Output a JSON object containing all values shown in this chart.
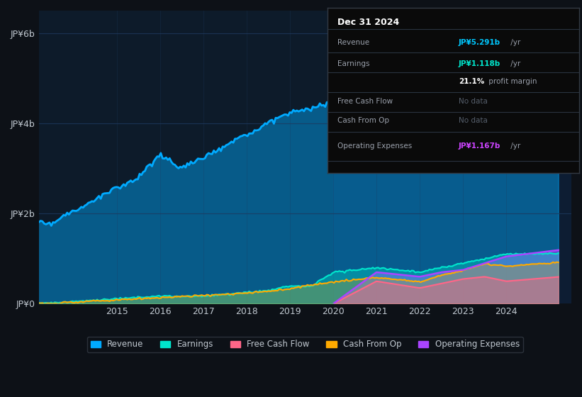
{
  "bg_color": "#0d1117",
  "plot_bg_color": "#0d1b2a",
  "grid_color": "#1e3a5f",
  "text_color": "#c0c8d0",
  "y_label_top": "JP¥6b",
  "y_label_bottom": "JP¥0",
  "x_ticks": [
    2015,
    2016,
    2017,
    2018,
    2019,
    2020,
    2021,
    2022,
    2023,
    2024
  ],
  "tooltip_title": "Dec 31 2024",
  "legend_items": [
    {
      "label": "Revenue",
      "color": "#00aaff"
    },
    {
      "label": "Earnings",
      "color": "#00e5cc"
    },
    {
      "label": "Free Cash Flow",
      "color": "#ff6688"
    },
    {
      "label": "Cash From Op",
      "color": "#ffaa00"
    },
    {
      "label": "Operating Expenses",
      "color": "#aa44ff"
    }
  ],
  "revenue_color": "#00aaff",
  "earnings_color": "#00e5cc",
  "free_cash_color": "#ff6688",
  "cash_from_op_color": "#ffaa00",
  "op_expenses_color": "#aa44ff",
  "shade_start": 2020.0,
  "ylim": [
    0,
    6.5
  ]
}
